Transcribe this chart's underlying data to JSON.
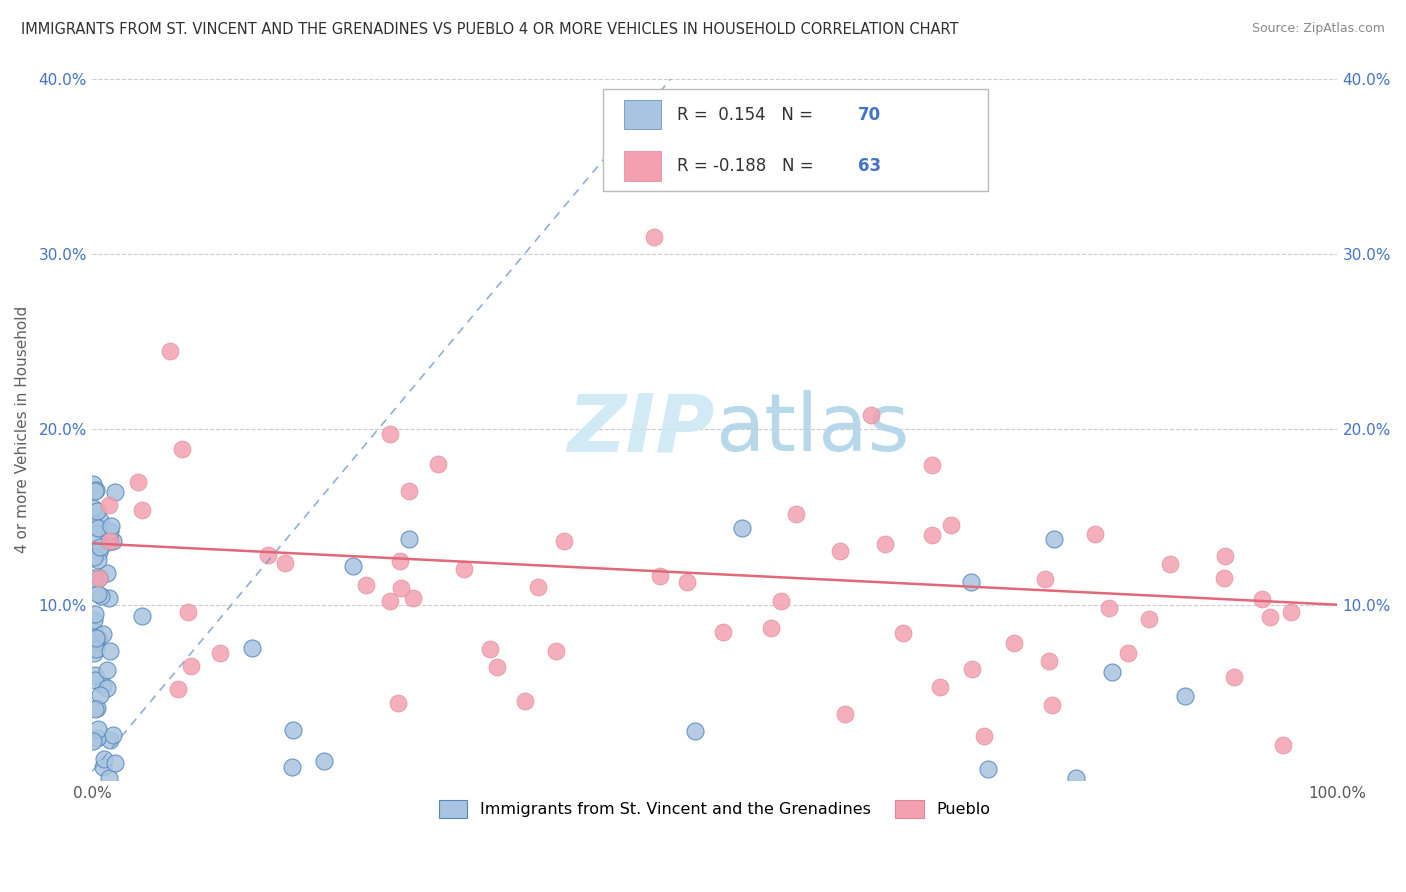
{
  "title": "IMMIGRANTS FROM ST. VINCENT AND THE GRENADINES VS PUEBLO 4 OR MORE VEHICLES IN HOUSEHOLD CORRELATION CHART",
  "source": "Source: ZipAtlas.com",
  "ylabel_left": "4 or more Vehicles in Household",
  "legend_label1": "Immigrants from St. Vincent and the Grenadines",
  "legend_label2": "Pueblo",
  "R1": 0.154,
  "N1": 70,
  "R2": -0.188,
  "N2": 63,
  "blue_color": "#a8c4e0",
  "blue_edge_color": "#5588bb",
  "pink_color": "#f4a0b0",
  "pink_edge_color": "#dd8899",
  "blue_line_color": "#7799cc",
  "pink_line_color": "#e06878",
  "axis_color": "#aaaaaa",
  "grid_color": "#cccccc",
  "title_color": "#303030",
  "source_color": "#888888",
  "tick_label_color": "#4472c4",
  "ylabel_color": "#606060",
  "watermark_color": "#cce8f4",
  "legend_R_color": "#333333",
  "legend_N_color": "#4472c4"
}
